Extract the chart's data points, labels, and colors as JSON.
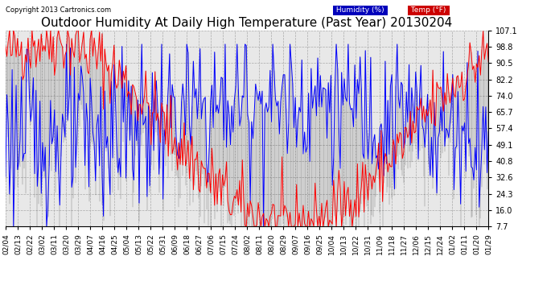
{
  "title": "Outdoor Humidity At Daily High Temperature (Past Year) 20130204",
  "copyright": "Copyright 2013 Cartronics.com",
  "legend_humidity": "Humidity (%)",
  "legend_temp": "Temp (°F)",
  "y_ticks": [
    7.7,
    16.0,
    24.3,
    32.6,
    40.8,
    49.1,
    57.4,
    65.7,
    74.0,
    82.2,
    90.5,
    98.8,
    107.1
  ],
  "ylim": [
    7.7,
    107.1
  ],
  "x_labels": [
    "02/04",
    "02/13",
    "02/22",
    "03/02",
    "03/11",
    "03/20",
    "03/29",
    "04/07",
    "04/16",
    "04/25",
    "05/04",
    "05/13",
    "05/22",
    "05/31",
    "06/09",
    "06/18",
    "06/27",
    "07/06",
    "07/15",
    "07/24",
    "08/02",
    "08/11",
    "08/20",
    "08/29",
    "09/07",
    "09/16",
    "09/25",
    "10/04",
    "10/13",
    "10/22",
    "10/31",
    "11/09",
    "11/18",
    "11/27",
    "12/06",
    "12/15",
    "12/24",
    "01/02",
    "01/11",
    "01/20",
    "01/29"
  ],
  "background_color": "#ffffff",
  "plot_bg_color": "#e8e8e8",
  "grid_color": "#aaaaaa",
  "title_fontsize": 11,
  "axis_fontsize": 7,
  "humidity_color": "#0000ff",
  "temp_color": "#ff0000",
  "bar_color": "#000000",
  "legend_humidity_bg": "#0000bb",
  "legend_temp_bg": "#cc0000",
  "n_days": 366,
  "temp_seed": 42,
  "hum_seed": 123
}
